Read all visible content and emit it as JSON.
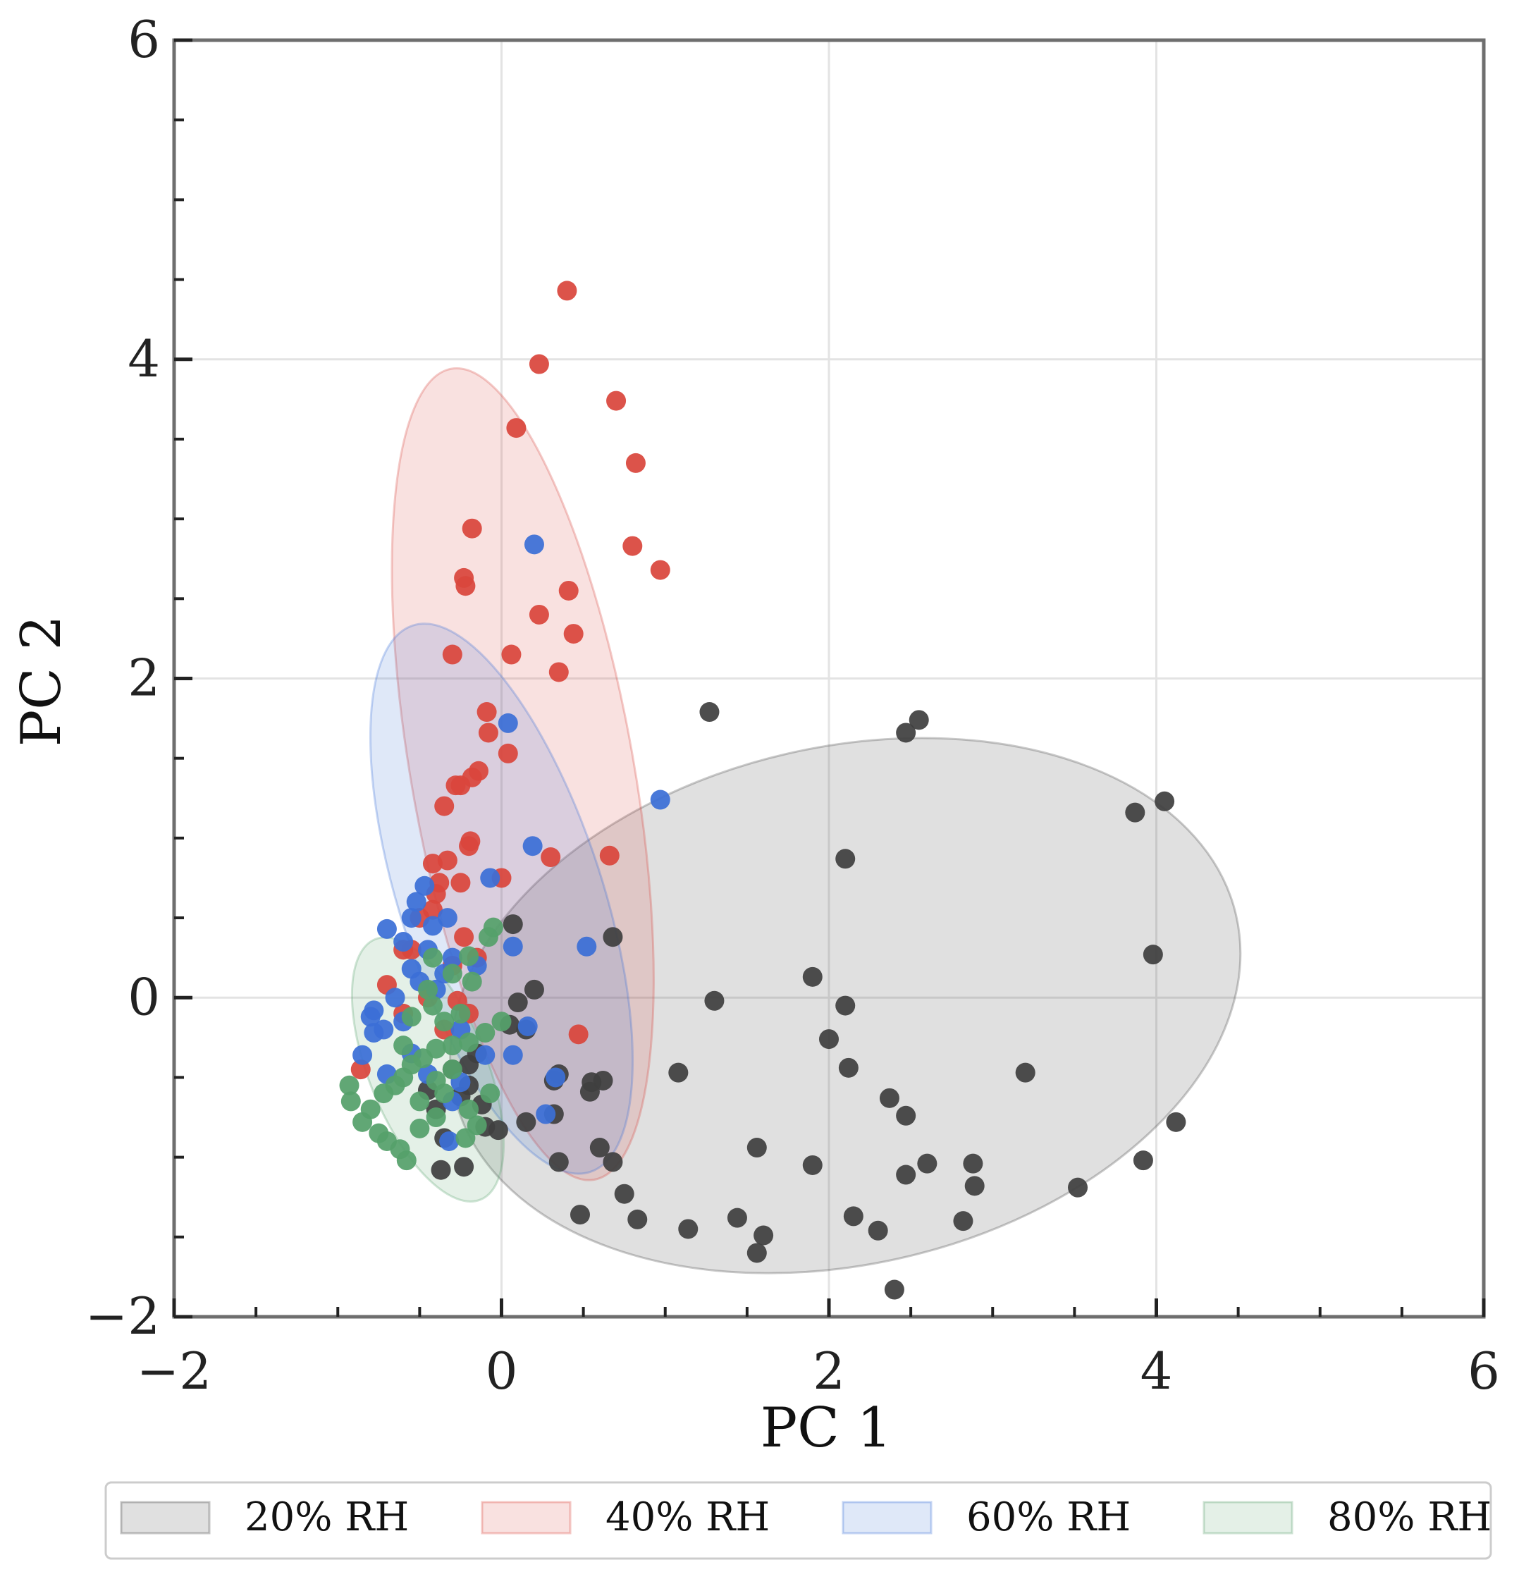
{
  "chart_data": {
    "type": "scatter",
    "title": "",
    "xlabel": "PC 1",
    "ylabel": "PC 2",
    "xlim": [
      -2,
      6
    ],
    "ylim": [
      -2,
      6
    ],
    "xticks": [
      -2,
      0,
      2,
      4,
      6
    ],
    "yticks": [
      -2,
      0,
      2,
      4,
      6
    ],
    "x_tick_labels": [
      "−2",
      "0",
      "2",
      "4",
      "6"
    ],
    "y_tick_labels": [
      "−2",
      "0",
      "2",
      "4",
      "6"
    ],
    "grid": true,
    "legend_position": "bottom",
    "series": [
      {
        "name": "20% RH",
        "color": "#3f3f3f",
        "ellipse": {
          "cx": 2.1,
          "cy": -0.05,
          "rx": 2.45,
          "ry": 1.62,
          "angle_deg": 13
        },
        "points": [
          [
            1.27,
            1.79
          ],
          [
            2.55,
            1.74
          ],
          [
            2.47,
            1.66
          ],
          [
            3.87,
            1.16
          ],
          [
            4.05,
            1.23
          ],
          [
            2.1,
            0.87
          ],
          [
            3.98,
            0.27
          ],
          [
            0.68,
            0.38
          ],
          [
            0.07,
            0.46
          ],
          [
            1.9,
            0.13
          ],
          [
            1.3,
            -0.02
          ],
          [
            2.1,
            -0.05
          ],
          [
            2.0,
            -0.26
          ],
          [
            3.2,
            -0.47
          ],
          [
            2.12,
            -0.44
          ],
          [
            1.08,
            -0.47
          ],
          [
            0.62,
            -0.52
          ],
          [
            0.55,
            -0.53
          ],
          [
            0.32,
            -0.52
          ],
          [
            0.54,
            -0.59
          ],
          [
            2.37,
            -0.63
          ],
          [
            2.47,
            -0.74
          ],
          [
            4.12,
            -0.78
          ],
          [
            0.15,
            -0.78
          ],
          [
            0.32,
            -0.73
          ],
          [
            -0.02,
            -0.83
          ],
          [
            -0.1,
            -0.81
          ],
          [
            1.56,
            -0.94
          ],
          [
            0.6,
            -0.94
          ],
          [
            0.68,
            -1.03
          ],
          [
            0.35,
            -1.03
          ],
          [
            1.9,
            -1.05
          ],
          [
            2.6,
            -1.04
          ],
          [
            2.88,
            -1.04
          ],
          [
            3.92,
            -1.02
          ],
          [
            2.47,
            -1.11
          ],
          [
            2.89,
            -1.18
          ],
          [
            3.52,
            -1.19
          ],
          [
            0.75,
            -1.23
          ],
          [
            -0.37,
            -1.08
          ],
          [
            -0.23,
            -1.06
          ],
          [
            0.48,
            -1.36
          ],
          [
            0.83,
            -1.39
          ],
          [
            1.14,
            -1.45
          ],
          [
            1.44,
            -1.38
          ],
          [
            1.6,
            -1.49
          ],
          [
            1.56,
            -1.6
          ],
          [
            2.15,
            -1.37
          ],
          [
            2.3,
            -1.46
          ],
          [
            2.82,
            -1.4
          ],
          [
            2.4,
            -1.83
          ],
          [
            -0.2,
            -0.55
          ],
          [
            -0.25,
            -0.62
          ],
          [
            -0.4,
            -0.7
          ],
          [
            -0.12,
            -0.67
          ],
          [
            -0.3,
            -0.45
          ],
          [
            0.05,
            -0.17
          ],
          [
            0.15,
            -0.2
          ],
          [
            -0.45,
            -0.58
          ],
          [
            0.2,
            0.05
          ],
          [
            0.1,
            -0.03
          ],
          [
            -0.15,
            -0.35
          ],
          [
            -0.35,
            -0.88
          ],
          [
            -0.2,
            -0.42
          ],
          [
            0.35,
            -0.48
          ]
        ]
      },
      {
        "name": "40% RH",
        "color": "#d9463c",
        "ellipse": {
          "cx": 0.13,
          "cy": 1.4,
          "rx": 0.68,
          "ry": 2.58,
          "angle_deg": 10
        },
        "points": [
          [
            0.4,
            4.43
          ],
          [
            0.23,
            3.97
          ],
          [
            0.7,
            3.74
          ],
          [
            0.09,
            3.57
          ],
          [
            0.82,
            3.35
          ],
          [
            -0.18,
            2.94
          ],
          [
            0.8,
            2.83
          ],
          [
            0.97,
            2.68
          ],
          [
            -0.23,
            2.63
          ],
          [
            -0.22,
            2.58
          ],
          [
            0.41,
            2.55
          ],
          [
            0.23,
            2.4
          ],
          [
            0.44,
            2.28
          ],
          [
            -0.3,
            2.15
          ],
          [
            0.06,
            2.15
          ],
          [
            0.35,
            2.04
          ],
          [
            -0.09,
            1.79
          ],
          [
            -0.08,
            1.66
          ],
          [
            0.04,
            1.53
          ],
          [
            -0.14,
            1.42
          ],
          [
            -0.18,
            1.38
          ],
          [
            -0.25,
            1.33
          ],
          [
            -0.28,
            1.33
          ],
          [
            -0.35,
            1.2
          ],
          [
            -0.19,
            0.98
          ],
          [
            -0.2,
            0.95
          ],
          [
            0.3,
            0.88
          ],
          [
            0.66,
            0.89
          ],
          [
            -0.33,
            0.86
          ],
          [
            -0.42,
            0.84
          ],
          [
            -0.38,
            0.72
          ],
          [
            0.0,
            0.75
          ],
          [
            -0.25,
            0.72
          ],
          [
            -0.4,
            0.65
          ],
          [
            -0.42,
            0.55
          ],
          [
            -0.5,
            0.5
          ],
          [
            -0.23,
            0.38
          ],
          [
            -0.55,
            0.3
          ],
          [
            -0.7,
            0.08
          ],
          [
            -0.27,
            -0.02
          ],
          [
            0.47,
            -0.23
          ],
          [
            -0.86,
            -0.45
          ],
          [
            -0.3,
            0.2
          ],
          [
            -0.15,
            0.25
          ],
          [
            -0.45,
            0.0
          ],
          [
            -0.6,
            -0.1
          ],
          [
            -0.35,
            -0.2
          ],
          [
            -0.6,
            0.3
          ],
          [
            -0.2,
            -0.1
          ]
        ]
      },
      {
        "name": "60% RH",
        "color": "#3b6fd6",
        "ellipse": {
          "cx": 0.0,
          "cy": 0.62,
          "rx": 0.62,
          "ry": 1.8,
          "angle_deg": 18
        },
        "points": [
          [
            0.2,
            2.84
          ],
          [
            0.04,
            1.72
          ],
          [
            0.97,
            1.24
          ],
          [
            0.19,
            0.95
          ],
          [
            -0.07,
            0.75
          ],
          [
            -0.47,
            0.7
          ],
          [
            -0.52,
            0.6
          ],
          [
            -0.55,
            0.5
          ],
          [
            -0.33,
            0.5
          ],
          [
            -0.42,
            0.45
          ],
          [
            -0.7,
            0.43
          ],
          [
            -0.6,
            0.35
          ],
          [
            -0.45,
            0.3
          ],
          [
            0.07,
            0.32
          ],
          [
            0.52,
            0.32
          ],
          [
            -0.3,
            0.25
          ],
          [
            -0.55,
            0.18
          ],
          [
            -0.4,
            0.05
          ],
          [
            -0.5,
            0.1
          ],
          [
            -0.65,
            0.0
          ],
          [
            -0.78,
            -0.08
          ],
          [
            -0.8,
            -0.12
          ],
          [
            -0.72,
            -0.2
          ],
          [
            -0.78,
            -0.22
          ],
          [
            -0.85,
            -0.36
          ],
          [
            0.16,
            -0.18
          ],
          [
            0.07,
            -0.36
          ],
          [
            -0.1,
            -0.36
          ],
          [
            -0.55,
            -0.35
          ],
          [
            -0.45,
            -0.48
          ],
          [
            0.33,
            -0.5
          ],
          [
            -0.7,
            -0.48
          ],
          [
            -0.25,
            -0.53
          ],
          [
            -0.3,
            -0.65
          ],
          [
            0.27,
            -0.73
          ],
          [
            -0.32,
            -0.9
          ],
          [
            -0.6,
            -0.15
          ],
          [
            -0.35,
            0.15
          ],
          [
            -0.15,
            0.2
          ],
          [
            -0.25,
            -0.2
          ]
        ]
      },
      {
        "name": "80% RH",
        "color": "#55a06a",
        "ellipse": {
          "cx": -0.45,
          "cy": -0.45,
          "rx": 0.36,
          "ry": 0.88,
          "angle_deg": 22
        },
        "points": [
          [
            -0.05,
            0.44
          ],
          [
            -0.08,
            0.38
          ],
          [
            -0.2,
            0.26
          ],
          [
            -0.42,
            0.25
          ],
          [
            -0.3,
            0.15
          ],
          [
            -0.18,
            0.1
          ],
          [
            -0.45,
            0.05
          ],
          [
            -0.42,
            -0.05
          ],
          [
            -0.55,
            -0.12
          ],
          [
            -0.35,
            -0.15
          ],
          [
            0.0,
            -0.15
          ],
          [
            -0.1,
            -0.22
          ],
          [
            -0.2,
            -0.28
          ],
          [
            -0.3,
            -0.3
          ],
          [
            -0.4,
            -0.32
          ],
          [
            -0.48,
            -0.38
          ],
          [
            -0.55,
            -0.42
          ],
          [
            -0.6,
            -0.5
          ],
          [
            -0.3,
            -0.45
          ],
          [
            -0.4,
            -0.52
          ],
          [
            -0.65,
            -0.55
          ],
          [
            -0.72,
            -0.6
          ],
          [
            -0.93,
            -0.55
          ],
          [
            -0.92,
            -0.65
          ],
          [
            -0.8,
            -0.7
          ],
          [
            -0.85,
            -0.78
          ],
          [
            -0.75,
            -0.85
          ],
          [
            -0.7,
            -0.9
          ],
          [
            -0.62,
            -0.95
          ],
          [
            -0.58,
            -1.02
          ],
          [
            -0.5,
            -0.82
          ],
          [
            -0.4,
            -0.75
          ],
          [
            -0.2,
            -0.7
          ],
          [
            -0.15,
            -0.8
          ],
          [
            -0.22,
            -0.88
          ],
          [
            -0.07,
            -0.6
          ],
          [
            -0.5,
            -0.65
          ],
          [
            -0.6,
            -0.3
          ],
          [
            -0.35,
            -0.6
          ],
          [
            -0.25,
            -0.1
          ]
        ]
      }
    ]
  }
}
